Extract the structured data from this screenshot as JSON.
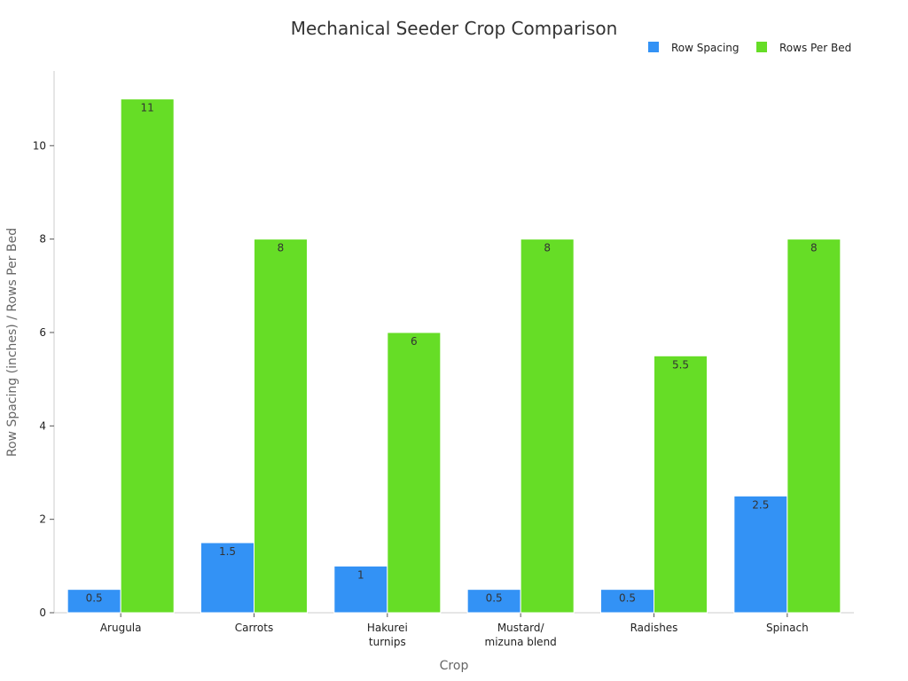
{
  "chart_data": {
    "type": "bar",
    "title": "Mechanical Seeder Crop Comparison",
    "xlabel": "Crop",
    "ylabel": "Row Spacing (inches) / Rows Per Bed",
    "categories": [
      [
        "Arugula"
      ],
      [
        "Carrots"
      ],
      [
        "Hakurei",
        "turnips"
      ],
      [
        "Mustard/",
        "mizuna blend"
      ],
      [
        "Radishes"
      ],
      [
        "Spinach"
      ]
    ],
    "series": [
      {
        "name": "Row Spacing",
        "color": "#3392f5",
        "values": [
          0.5,
          1.5,
          1,
          0.5,
          0.5,
          2.5
        ],
        "labels": [
          "0.5",
          "1.5",
          "1",
          "0.5",
          "0.5",
          "2.5"
        ]
      },
      {
        "name": "Rows Per Bed",
        "color": "#66dd26",
        "values": [
          11,
          8,
          6,
          8,
          5.5,
          8
        ],
        "labels": [
          "11",
          "8",
          "6",
          "8",
          "5.5",
          "8"
        ]
      }
    ],
    "ylim": [
      0,
      11.6
    ],
    "yticks": [
      0,
      2,
      4,
      6,
      8,
      10
    ],
    "ytick_labels": [
      "0",
      "2",
      "4",
      "6",
      "8",
      "10"
    ],
    "grid": false,
    "legend_position": "top-right"
  }
}
